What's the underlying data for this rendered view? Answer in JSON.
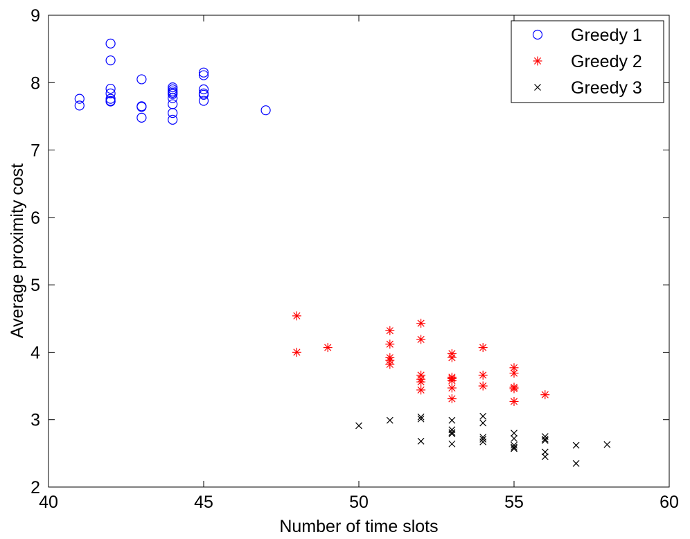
{
  "chart_data": {
    "type": "scatter",
    "title": "",
    "xlabel": "Number of time slots",
    "ylabel": "Average proximity cost",
    "xlim": [
      40,
      60
    ],
    "ylim": [
      2,
      9
    ],
    "xticks": [
      "40",
      "45",
      "50",
      "55",
      "60"
    ],
    "yticks": [
      "2",
      "3",
      "4",
      "5",
      "6",
      "7",
      "8",
      "9"
    ],
    "grid": false,
    "legend_position": "top-right",
    "series": [
      {
        "name": "Greedy 1",
        "marker": "circle",
        "color": "#0000ff",
        "points": [
          [
            41,
            7.76
          ],
          [
            41,
            7.66
          ],
          [
            42,
            8.58
          ],
          [
            42,
            8.33
          ],
          [
            42,
            7.91
          ],
          [
            42,
            7.84
          ],
          [
            42,
            7.76
          ],
          [
            42,
            7.73
          ],
          [
            42,
            7.72
          ],
          [
            43,
            8.05
          ],
          [
            43,
            7.65
          ],
          [
            43,
            7.64
          ],
          [
            43,
            7.48
          ],
          [
            44,
            7.93
          ],
          [
            44,
            7.9
          ],
          [
            44,
            7.87
          ],
          [
            44,
            7.85
          ],
          [
            44,
            7.83
          ],
          [
            44,
            7.77
          ],
          [
            44,
            7.68
          ],
          [
            44,
            7.55
          ],
          [
            44,
            7.45
          ],
          [
            45,
            8.15
          ],
          [
            45,
            8.11
          ],
          [
            45,
            7.9
          ],
          [
            45,
            7.84
          ],
          [
            45,
            7.82
          ],
          [
            45,
            7.73
          ],
          [
            47,
            7.59
          ]
        ]
      },
      {
        "name": "Greedy 2",
        "marker": "asterisk",
        "color": "#ff0000",
        "points": [
          [
            48,
            4.54
          ],
          [
            48,
            4.0
          ],
          [
            49,
            4.07
          ],
          [
            51,
            4.32
          ],
          [
            51,
            4.12
          ],
          [
            51,
            3.92
          ],
          [
            51,
            3.88
          ],
          [
            51,
            3.82
          ],
          [
            52,
            4.43
          ],
          [
            52,
            4.19
          ],
          [
            52,
            3.66
          ],
          [
            52,
            3.6
          ],
          [
            52,
            3.56
          ],
          [
            52,
            3.44
          ],
          [
            53,
            3.98
          ],
          [
            53,
            3.92
          ],
          [
            53,
            3.63
          ],
          [
            53,
            3.61
          ],
          [
            53,
            3.58
          ],
          [
            53,
            3.47
          ],
          [
            53,
            3.31
          ],
          [
            54,
            4.07
          ],
          [
            54,
            3.66
          ],
          [
            54,
            3.5
          ],
          [
            55,
            3.77
          ],
          [
            55,
            3.69
          ],
          [
            55,
            3.48
          ],
          [
            55,
            3.46
          ],
          [
            55,
            3.27
          ],
          [
            56,
            3.37
          ]
        ]
      },
      {
        "name": "Greedy 3",
        "marker": "x",
        "color": "#000000",
        "points": [
          [
            50,
            2.91
          ],
          [
            51,
            2.99
          ],
          [
            52,
            3.04
          ],
          [
            52,
            3.01
          ],
          [
            52,
            2.68
          ],
          [
            53,
            2.99
          ],
          [
            53,
            2.85
          ],
          [
            53,
            2.81
          ],
          [
            53,
            2.79
          ],
          [
            53,
            2.64
          ],
          [
            54,
            3.05
          ],
          [
            54,
            2.95
          ],
          [
            54,
            2.74
          ],
          [
            54,
            2.71
          ],
          [
            54,
            2.67
          ],
          [
            55,
            2.8
          ],
          [
            55,
            2.72
          ],
          [
            55,
            2.62
          ],
          [
            55,
            2.59
          ],
          [
            55,
            2.57
          ],
          [
            56,
            2.75
          ],
          [
            56,
            2.71
          ],
          [
            56,
            2.69
          ],
          [
            56,
            2.52
          ],
          [
            56,
            2.45
          ],
          [
            57,
            2.62
          ],
          [
            57,
            2.35
          ],
          [
            58,
            2.63
          ]
        ]
      }
    ]
  }
}
